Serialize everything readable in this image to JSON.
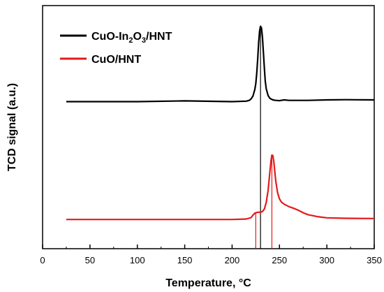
{
  "chart_data": {
    "type": "line",
    "title": "",
    "xlabel": "Temperature, °C",
    "ylabel": "TCD signal (a.u.)",
    "xlim": [
      0,
      350
    ],
    "ylim": [
      0,
      100
    ],
    "x_ticks": [
      0,
      50,
      100,
      150,
      200,
      250,
      300,
      350
    ],
    "y_ticks_shown": false,
    "grid": false,
    "legend_position": "top-left",
    "series": [
      {
        "name_parts": [
          "CuO-In",
          "2",
          "O",
          "3",
          "/HNT"
        ],
        "color": "#000000",
        "x": [
          25,
          100,
          150,
          200,
          215,
          218,
          220,
          222,
          224,
          225,
          226,
          227,
          228,
          229,
          230,
          231,
          232,
          233,
          234,
          235,
          236,
          238,
          240,
          243,
          246,
          250,
          255,
          260,
          280,
          300,
          320,
          350
        ],
        "y": [
          60.5,
          60.5,
          60.8,
          60.5,
          60.7,
          61.0,
          61.6,
          62.8,
          65.5,
          68.0,
          72.0,
          78.0,
          84.5,
          89.5,
          91.5,
          90.8,
          87.0,
          81.0,
          74.5,
          69.0,
          65.8,
          63.0,
          61.8,
          61.2,
          61.0,
          60.9,
          61.2,
          61.0,
          61.0,
          61.2,
          61.3,
          61.2
        ]
      },
      {
        "name": "CuO/HNT",
        "color": "#e31a1c",
        "x": [
          25,
          100,
          150,
          200,
          215,
          220,
          222,
          224,
          226,
          228,
          230,
          232,
          234,
          236,
          238,
          240,
          241,
          242,
          243,
          244,
          245,
          246,
          248,
          250,
          252,
          255,
          260,
          265,
          270,
          275,
          280,
          285,
          290,
          300,
          320,
          350
        ],
        "y": [
          12.0,
          12.0,
          12.0,
          12.0,
          12.2,
          12.8,
          13.8,
          14.6,
          14.9,
          15.0,
          15.0,
          15.3,
          16.3,
          19.0,
          24.0,
          32.0,
          36.0,
          38.5,
          38.3,
          36.0,
          32.0,
          28.0,
          23.0,
          20.5,
          19.2,
          18.3,
          17.3,
          16.6,
          15.8,
          14.8,
          14.0,
          13.6,
          13.2,
          12.7,
          12.5,
          12.4
        ]
      }
    ],
    "vertical_markers": [
      {
        "x": 230,
        "color": "#000000",
        "y_top": 91.5
      },
      {
        "x": 225,
        "color": "#e31a1c",
        "y_top": 15.0
      },
      {
        "x": 242,
        "color": "#e31a1c",
        "y_top": 38.5
      }
    ]
  },
  "legend": {
    "entry1_parts": [
      "CuO-In",
      "2",
      "O",
      "3",
      "/HNT"
    ],
    "entry2": "CuO/HNT"
  }
}
